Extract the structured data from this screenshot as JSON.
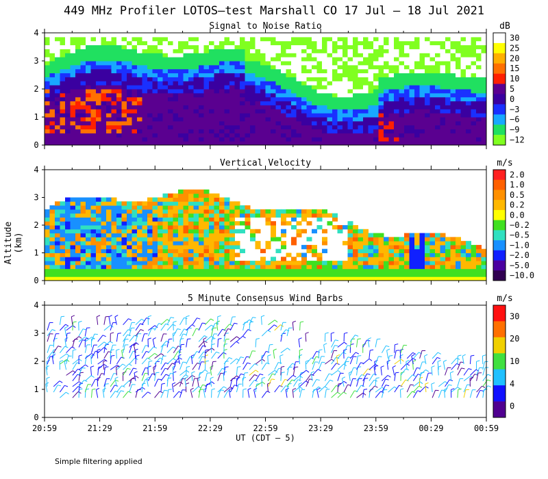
{
  "title": "449 MHz Profiler LOTOS–test Marshall CO 17 Jul – 18 Jul 2021",
  "ylabel": "Altitude (km)",
  "xlabel": "UT (CDT – 5)",
  "note": "Simple filtering applied",
  "chart_data": [
    {
      "type": "heatmap",
      "title": "Signal to Noise Ratio",
      "unit": "dB",
      "ylim": [
        0,
        4
      ],
      "yticks": [
        "0",
        "1",
        "2",
        "3",
        "4"
      ],
      "xticks": [
        "20:59",
        "21:29",
        "21:59",
        "22:29",
        "22:59",
        "23:29",
        "23:59",
        "00:29",
        "00:59"
      ],
      "colorbar": {
        "labels": [
          "30",
          "25",
          "20",
          "15",
          "10",
          "5",
          "0",
          "−3",
          "−6",
          "−9",
          "−12"
        ],
        "colors": [
          "#ffffff",
          "#ffff00",
          "#ffb000",
          "#ff7000",
          "#ff2000",
          "#5a0090",
          "#3a00a0",
          "#1a30ff",
          "#18a8ff",
          "#20e060",
          "#80ff20"
        ]
      }
    },
    {
      "type": "heatmap",
      "title": "Vertical Velocity",
      "unit": "m/s",
      "ylim": [
        0,
        4
      ],
      "yticks": [
        "0",
        "1",
        "2",
        "3",
        "4"
      ],
      "colorbar": {
        "labels": [
          "2.0",
          "1.0",
          "0.5",
          "0.2",
          "0.0",
          "−0.2",
          "−0.5",
          "−1.0",
          "−2.0",
          "−5.0",
          "−10.0"
        ],
        "colors": [
          "#ff2020",
          "#ff6000",
          "#ff9000",
          "#ffb800",
          "#ffff00",
          "#40e020",
          "#30e0c0",
          "#1890ff",
          "#1020ff",
          "#4a00a0",
          "#300050"
        ]
      }
    },
    {
      "type": "scatter",
      "title": "5 Minute Consensus Wind Barbs",
      "unit": "m/s",
      "ylim": [
        0,
        4
      ],
      "yticks": [
        "0",
        "1",
        "2",
        "3",
        "4"
      ],
      "colorbar": {
        "labels": [
          "30",
          "20",
          "10",
          "4",
          "0"
        ],
        "colors": [
          "#ff1010",
          "#ff7000",
          "#f0d000",
          "#40e040",
          "#20c0ff",
          "#1010ff",
          "#500090"
        ]
      }
    }
  ]
}
